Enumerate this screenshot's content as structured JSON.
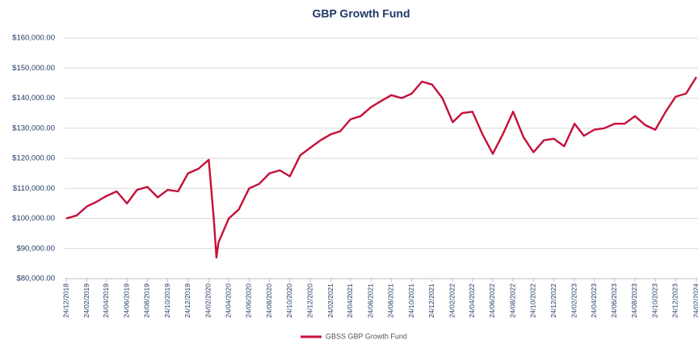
{
  "chart_data": {
    "type": "line",
    "title": "GBP Growth Fund",
    "x": [
      "24/12/2018",
      "24/01/2019",
      "24/02/2019",
      "24/03/2019",
      "24/04/2019",
      "24/05/2019",
      "24/06/2019",
      "24/07/2019",
      "24/08/2019",
      "24/09/2019",
      "24/10/2019",
      "24/11/2019",
      "24/12/2019",
      "24/01/2020",
      "24/02/2020",
      "10/03/2020",
      "18/03/2020",
      "24/03/2020",
      "24/04/2020",
      "24/05/2020",
      "24/06/2020",
      "24/07/2020",
      "24/08/2020",
      "24/09/2020",
      "24/10/2020",
      "24/11/2020",
      "24/12/2020",
      "24/01/2021",
      "24/02/2021",
      "24/03/2021",
      "24/04/2021",
      "24/05/2021",
      "24/06/2021",
      "24/07/2021",
      "24/08/2021",
      "24/09/2021",
      "24/10/2021",
      "24/11/2021",
      "24/12/2021",
      "24/01/2022",
      "24/02/2022",
      "24/03/2022",
      "24/04/2022",
      "24/05/2022",
      "24/06/2022",
      "24/07/2022",
      "24/08/2022",
      "24/09/2022",
      "24/10/2022",
      "24/11/2022",
      "24/12/2022",
      "24/01/2023",
      "24/02/2023",
      "24/03/2023",
      "24/04/2023",
      "24/05/2023",
      "24/06/2023",
      "24/07/2023",
      "24/08/2023",
      "24/09/2023",
      "24/10/2023",
      "24/11/2023",
      "24/12/2023",
      "24/01/2024",
      "24/02/2024"
    ],
    "series": [
      {
        "name": "GBSS GBP Growth Fund",
        "color": "#c5103a",
        "values": [
          100000,
          101000,
          104000,
          105500,
          107500,
          109000,
          105000,
          109500,
          110500,
          107000,
          109500,
          109000,
          115000,
          116500,
          119500,
          100000,
          87000,
          92000,
          100000,
          103000,
          110000,
          111500,
          115000,
          116000,
          114000,
          121000,
          123500,
          126000,
          128000,
          129000,
          133000,
          134000,
          137000,
          139000,
          141000,
          140000,
          141500,
          145500,
          144500,
          140000,
          132000,
          135000,
          135500,
          128000,
          121500,
          128000,
          135500,
          127000,
          122000,
          126000,
          126500,
          124000,
          131500,
          127500,
          129500,
          130000,
          131500,
          131500,
          134000,
          131000,
          129500,
          135500,
          140500,
          141500,
          147000
        ]
      }
    ],
    "xlim": [
      "24/12/2018",
      "24/02/2024"
    ],
    "xticks": [
      "24/12/2018",
      "24/02/2019",
      "24/04/2019",
      "24/06/2019",
      "24/08/2019",
      "24/10/2019",
      "24/12/2019",
      "24/02/2020",
      "24/04/2020",
      "24/06/2020",
      "24/08/2020",
      "24/10/2020",
      "24/12/2020",
      "24/02/2021",
      "24/04/2021",
      "24/06/2021",
      "24/08/2021",
      "24/10/2021",
      "24/12/2021",
      "24/02/2022",
      "24/04/2022",
      "24/06/2022",
      "24/08/2022",
      "24/10/2022",
      "24/12/2022",
      "24/02/2023",
      "24/04/2023",
      "24/06/2023",
      "24/08/2023",
      "24/10/2023",
      "24/12/2023",
      "24/02/2024"
    ],
    "ylim": [
      80000,
      160000
    ],
    "yticks": [
      {
        "value": 80000,
        "label": "$80,000.00"
      },
      {
        "value": 90000,
        "label": "$90,000.00"
      },
      {
        "value": 100000,
        "label": "$100,000.00"
      },
      {
        "value": 110000,
        "label": "$110,000.00"
      },
      {
        "value": 120000,
        "label": "$120,000.00"
      },
      {
        "value": 130000,
        "label": "$130,000.00"
      },
      {
        "value": 140000,
        "label": "$140,000.00"
      },
      {
        "value": 150000,
        "label": "$150,000.00"
      },
      {
        "value": 160000,
        "label": "$160,000.00"
      }
    ],
    "grid": true,
    "legend": "bottom"
  }
}
